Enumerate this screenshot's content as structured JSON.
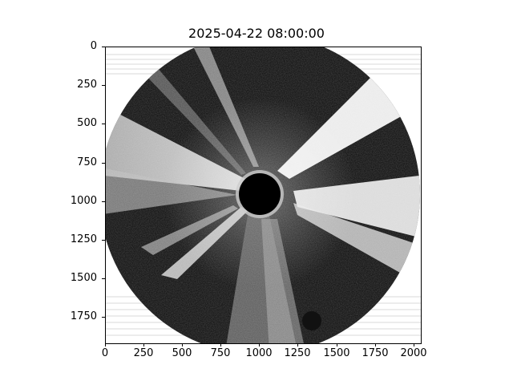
{
  "figure": {
    "title": "2025-04-22 08:00:00"
  },
  "axes": {
    "x_ticks": [
      "0",
      "250",
      "500",
      "750",
      "1000",
      "1250",
      "1500",
      "1750",
      "2000"
    ],
    "y_ticks": [
      "0",
      "250",
      "500",
      "750",
      "1000",
      "1250",
      "1500",
      "1750"
    ],
    "xlim": [
      0,
      2048
    ],
    "ylim": [
      1920,
      0
    ]
  },
  "image": {
    "description_colormap": "grayscale",
    "background_color": "#000000",
    "foreground_color": "#ffffff"
  }
}
